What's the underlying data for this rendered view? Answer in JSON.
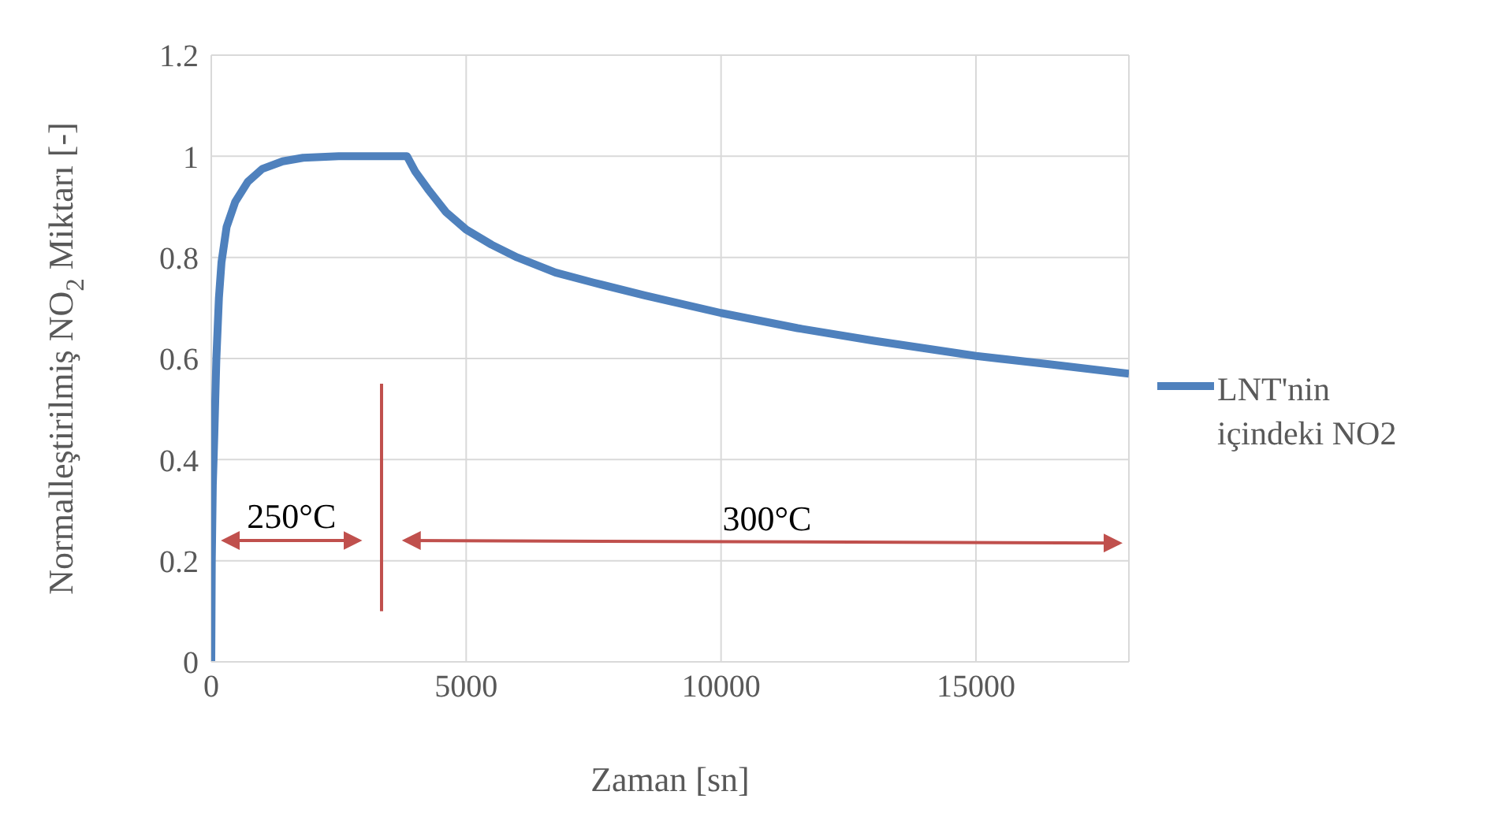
{
  "chart_data": {
    "type": "line",
    "xlabel": "Zaman [sn]",
    "ylabel": "Normalleştirilmiş  NO$_{2}$ Miktarı  [-]",
    "xlim": [
      0,
      18000
    ],
    "xticks": [
      0,
      5000,
      10000,
      15000
    ],
    "ylim": [
      0,
      1.2
    ],
    "yticks": [
      0,
      0.2,
      0.4,
      0.6,
      0.8,
      1,
      1.2
    ],
    "grid": true,
    "legend": "right",
    "marker": "none",
    "line_style": "solid",
    "series": [
      {
        "name": "LNT'nin içindeki NO2",
        "color": "#4f81bd",
        "x": [
          0,
          10,
          30,
          60,
          100,
          150,
          200,
          300,
          470,
          720,
          1000,
          1400,
          1800,
          2500,
          3200,
          3840,
          4000,
          4250,
          4600,
          5000,
          5500,
          6000,
          6750,
          7500,
          8500,
          10000,
          11500,
          13000,
          15000,
          16500,
          18000
        ],
        "values": [
          0,
          0.2,
          0.35,
          0.45,
          0.6,
          0.72,
          0.79,
          0.86,
          0.91,
          0.95,
          0.975,
          0.99,
          0.997,
          1,
          1,
          1,
          0.97,
          0.935,
          0.89,
          0.855,
          0.825,
          0.8,
          0.77,
          0.75,
          0.725,
          0.69,
          0.66,
          0.635,
          0.605,
          0.588,
          0.57
        ]
      }
    ],
    "annotations": [
      "250°C",
      "300°C"
    ]
  }
}
